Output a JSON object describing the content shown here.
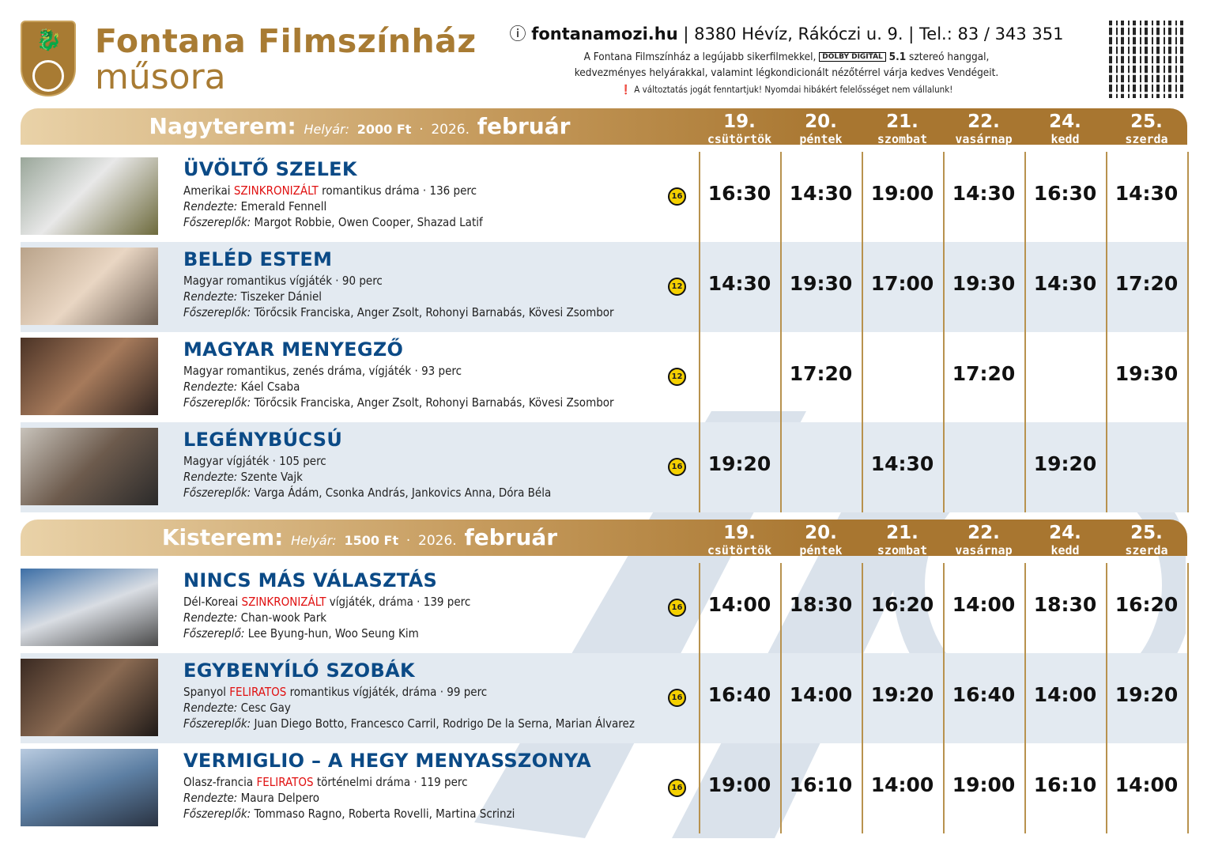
{
  "brand": {
    "title": "Fontana Filmszínház",
    "subtitle": "műsora"
  },
  "contact": {
    "website": "fontanamozi.hu",
    "address": "8380 Hévíz, Rákóczi u. 9.",
    "phone": "Tel.: 83 / 343 351"
  },
  "info": {
    "line1_pre": "A Fontana Filmszínház a legújabb sikerfilmekkel,",
    "dolby": "DOLBY DIGITAL",
    "line1_b": "5.1",
    "line1_post": "sztereó hanggal,",
    "line2": "kedvezményes helyárakkal, valamint légkondicionált nézőtérrel várja kedves Vendégeit.",
    "notice": "A változtatás jogát fenntartjuk! Nyomdai hibákért felelősséget nem vállalunk!"
  },
  "colors": {
    "gold": "#a87b33",
    "title_blue": "#0b4a86",
    "highlight_red": "#e01010",
    "alt_row": "#e3eaf1",
    "badge": "#f5d000"
  },
  "days": [
    {
      "n": "19.",
      "w": "csütörtök"
    },
    {
      "n": "20.",
      "w": "péntek"
    },
    {
      "n": "21.",
      "w": "szombat"
    },
    {
      "n": "22.",
      "w": "vasárnap"
    },
    {
      "n": "24.",
      "w": "kedd"
    },
    {
      "n": "25.",
      "w": "szerda"
    }
  ],
  "halls": [
    {
      "name": "Nagyterem:",
      "price_label": "Helyár:",
      "price": "2000 Ft",
      "sep": "·",
      "year": "2026.",
      "month": "február",
      "films": [
        {
          "title": "ÜVÖLTŐ SZELEK",
          "origin": "Amerikai",
          "tag": "SZINKRONIZÁLT",
          "genre": "romantikus dráma",
          "duration": "136 perc",
          "director_label": "Rendezte:",
          "director": "Emerald Fennell",
          "cast_label": "Főszereplők:",
          "cast": "Margot Robbie, Owen Cooper, Shazad Latif",
          "rating": "16",
          "times": [
            "16:30",
            "14:30",
            "19:00",
            "14:30",
            "16:30",
            "14:30"
          ]
        },
        {
          "title": "BELÉD ESTEM",
          "origin": "Magyar",
          "tag": "",
          "genre": "romantikus vígjáték",
          "duration": "90 perc",
          "director_label": "Rendezte:",
          "director": "Tiszeker Dániel",
          "cast_label": "Főszereplők:",
          "cast": "Törőcsik Franciska, Anger Zsolt, Rohonyi Barnabás, Kövesi Zsombor",
          "rating": "12",
          "times": [
            "14:30",
            "19:30",
            "17:00",
            "19:30",
            "14:30",
            "17:20"
          ]
        },
        {
          "title": "MAGYAR MENYEGZŐ",
          "origin": "Magyar",
          "tag": "",
          "genre": "romantikus, zenés dráma, vígjáték",
          "duration": "93 perc",
          "director_label": "Rendezte:",
          "director": "Káel Csaba",
          "cast_label": "Főszereplők:",
          "cast": "Törőcsik Franciska, Anger Zsolt, Rohonyi Barnabás, Kövesi Zsombor",
          "rating": "12",
          "times": [
            "",
            "17:20",
            "",
            "17:20",
            "",
            "19:30"
          ]
        },
        {
          "title": "LEGÉNYBÚCSÚ",
          "origin": "Magyar",
          "tag": "",
          "genre": "vígjáték",
          "duration": "105 perc",
          "director_label": "Rendezte:",
          "director": "Szente Vajk",
          "cast_label": "Főszereplők:",
          "cast": "Varga Ádám, Csonka András, Jankovics Anna, Dóra Béla",
          "rating": "16",
          "times": [
            "19:20",
            "",
            "14:30",
            "",
            "19:20",
            ""
          ]
        }
      ]
    },
    {
      "name": "Kisterem:",
      "price_label": "Helyár:",
      "price": "1500 Ft",
      "sep": "·",
      "year": "2026.",
      "month": "február",
      "films": [
        {
          "title": "NINCS MÁS VÁLASZTÁS",
          "origin": "Dél-Koreai",
          "tag": "SZINKRONIZÁLT",
          "genre": "vígjáték, dráma",
          "duration": "139 perc",
          "director_label": "Rendezte:",
          "director": "Chan-wook Park",
          "cast_label": "Főszereplő:",
          "cast": "Lee Byung-hun, Woo Seung Kim",
          "rating": "16",
          "times": [
            "14:00",
            "18:30",
            "16:20",
            "14:00",
            "18:30",
            "16:20"
          ]
        },
        {
          "title": "EGYBENYÍLÓ SZOBÁK",
          "origin": "Spanyol",
          "tag": "FELIRATOS",
          "genre": "romantikus vígjáték, dráma",
          "duration": "99 perc",
          "director_label": "Rendezte:",
          "director": "Cesc Gay",
          "cast_label": "Főszereplők:",
          "cast": "Juan Diego Botto, Francesco Carril, Rodrigo De la Serna, Marian Álvarez",
          "rating": "16",
          "times": [
            "16:40",
            "14:00",
            "19:20",
            "16:40",
            "14:00",
            "19:20"
          ]
        },
        {
          "title": "VERMIGLIO – A HEGY MENYASSZONYA",
          "origin": "Olasz-francia",
          "tag": "FELIRATOS",
          "genre": "történelmi dráma",
          "duration": "119 perc",
          "director_label": "Rendezte:",
          "director": "Maura Delpero",
          "cast_label": "Főszereplők:",
          "cast": "Tommaso Ragno, Roberta Rovelli, Martina Scrinzi",
          "rating": "16",
          "times": [
            "19:00",
            "16:10",
            "14:00",
            "19:00",
            "16:10",
            "14:00"
          ]
        }
      ]
    }
  ]
}
